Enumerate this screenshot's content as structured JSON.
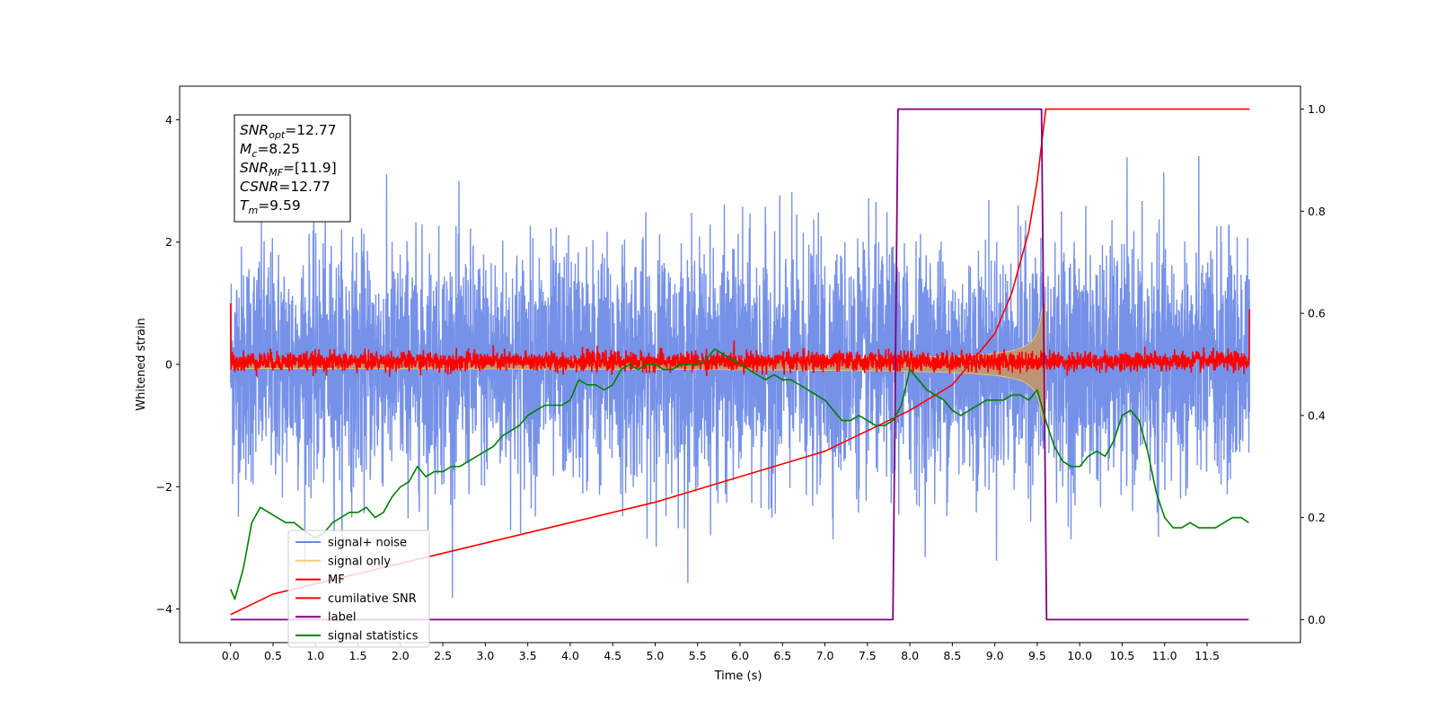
{
  "chart_data": {
    "type": "line",
    "xlabel": "Time (s)",
    "ylabel": "Whitened strain",
    "xlim": [
      -0.6,
      12.6
    ],
    "ylim": [
      -4.55,
      4.55
    ],
    "y2lim": [
      -0.045,
      1.045
    ],
    "grid": false,
    "legend_position": "lower-left",
    "x_ticks": [
      "0.0",
      "0.5",
      "1.0",
      "1.5",
      "2.0",
      "2.5",
      "3.0",
      "3.5",
      "4.0",
      "4.5",
      "5.0",
      "5.5",
      "6.0",
      "6.5",
      "7.0",
      "7.5",
      "8.0",
      "8.5",
      "9.0",
      "9.5",
      "10.0",
      "10.5",
      "11.0",
      "11.5"
    ],
    "y_ticks": [
      "4",
      "2",
      "0",
      "−2",
      "−4"
    ],
    "y2_ticks": [
      "1.0",
      "0.8",
      "0.6",
      "0.4",
      "0.2",
      "0.0"
    ],
    "annotation": {
      "lines": [
        {
          "main": "SNR",
          "sub": "opt",
          "rest": "=12.77"
        },
        {
          "main": "M",
          "sub": "c",
          "rest": "=8.25"
        },
        {
          "main": "SNR",
          "sub": "MF",
          "rest": "=[11.9]"
        },
        {
          "main": "CSNR",
          "sub": "",
          "rest": "=12.77"
        },
        {
          "main": "T",
          "sub": "m",
          "rest": "=9.59"
        }
      ]
    },
    "series": [
      {
        "name": "signal+ noise",
        "color": "#6a88e6",
        "axis": "left",
        "kind": "noise",
        "x_range": [
          0,
          12
        ],
        "sigma": 1.0,
        "peak": 3.9
      },
      {
        "name": "signal only",
        "color": "#f5cf78",
        "axis": "left",
        "kind": "chirp",
        "x_range": [
          0,
          9.6
        ],
        "amplitude_end": 1.0,
        "amplitude_start": 0.05
      },
      {
        "name": "MF",
        "color": "#ff0000",
        "axis": "left",
        "kind": "noise",
        "x_range": [
          0,
          12
        ],
        "center": 0.05,
        "sigma": 0.08,
        "edge_values": [
          1.0,
          0.9
        ]
      },
      {
        "name": "cumilative SNR",
        "color": "#ff0000",
        "axis": "right",
        "x": [
          0,
          0.5,
          1,
          2,
          3,
          4,
          5,
          6,
          7,
          7.5,
          8,
          8.5,
          9,
          9.2,
          9.4,
          9.5,
          9.55,
          9.6,
          12
        ],
        "y": [
          0.01,
          0.05,
          0.07,
          0.11,
          0.15,
          0.19,
          0.23,
          0.28,
          0.33,
          0.37,
          0.41,
          0.46,
          0.56,
          0.64,
          0.76,
          0.86,
          0.93,
          1.0,
          1.0
        ]
      },
      {
        "name": "label",
        "color": "#800080",
        "axis": "right",
        "x": [
          0,
          7.8,
          7.86,
          9.55,
          9.61,
          11.99
        ],
        "y": [
          0,
          0,
          1,
          1,
          0,
          0
        ]
      },
      {
        "name": "signal statistics",
        "color": "#008000",
        "axis": "right",
        "x": [
          0.0,
          0.05,
          0.15,
          0.25,
          0.35,
          0.45,
          0.55,
          0.65,
          0.75,
          0.9,
          1.0,
          1.1,
          1.2,
          1.3,
          1.4,
          1.5,
          1.6,
          1.7,
          1.8,
          1.9,
          2.0,
          2.1,
          2.2,
          2.3,
          2.4,
          2.5,
          2.6,
          2.7,
          2.8,
          2.9,
          3.0,
          3.1,
          3.2,
          3.3,
          3.4,
          3.5,
          3.6,
          3.7,
          3.8,
          3.9,
          4.0,
          4.1,
          4.2,
          4.3,
          4.4,
          4.5,
          4.6,
          4.7,
          4.8,
          4.9,
          5.0,
          5.1,
          5.2,
          5.3,
          5.4,
          5.5,
          5.6,
          5.7,
          5.8,
          5.9,
          6.0,
          6.1,
          6.2,
          6.3,
          6.4,
          6.5,
          6.6,
          6.7,
          6.8,
          6.9,
          7.0,
          7.1,
          7.2,
          7.3,
          7.4,
          7.5,
          7.6,
          7.7,
          7.8,
          7.9,
          8.0,
          8.1,
          8.2,
          8.3,
          8.4,
          8.5,
          8.6,
          8.7,
          8.8,
          8.9,
          9.0,
          9.1,
          9.2,
          9.3,
          9.4,
          9.5,
          9.6,
          9.7,
          9.8,
          9.9,
          10.0,
          10.1,
          10.2,
          10.3,
          10.4,
          10.5,
          10.6,
          10.7,
          10.8,
          10.9,
          11.0,
          11.1,
          11.2,
          11.3,
          11.4,
          11.5,
          11.6,
          11.7,
          11.8,
          11.9,
          11.99
        ],
        "y": [
          0.06,
          0.04,
          0.1,
          0.19,
          0.22,
          0.21,
          0.2,
          0.19,
          0.19,
          0.17,
          0.16,
          0.17,
          0.19,
          0.2,
          0.21,
          0.21,
          0.22,
          0.2,
          0.21,
          0.24,
          0.26,
          0.27,
          0.3,
          0.28,
          0.29,
          0.29,
          0.3,
          0.3,
          0.31,
          0.32,
          0.33,
          0.34,
          0.36,
          0.37,
          0.38,
          0.4,
          0.41,
          0.42,
          0.42,
          0.42,
          0.43,
          0.47,
          0.46,
          0.46,
          0.45,
          0.46,
          0.49,
          0.5,
          0.49,
          0.5,
          0.5,
          0.49,
          0.49,
          0.5,
          0.5,
          0.5,
          0.51,
          0.53,
          0.52,
          0.51,
          0.5,
          0.49,
          0.48,
          0.47,
          0.48,
          0.47,
          0.47,
          0.46,
          0.45,
          0.44,
          0.43,
          0.41,
          0.39,
          0.39,
          0.4,
          0.39,
          0.38,
          0.38,
          0.39,
          0.42,
          0.49,
          0.47,
          0.45,
          0.44,
          0.43,
          0.41,
          0.4,
          0.41,
          0.42,
          0.43,
          0.43,
          0.43,
          0.44,
          0.44,
          0.43,
          0.45,
          0.39,
          0.34,
          0.31,
          0.3,
          0.3,
          0.32,
          0.33,
          0.32,
          0.35,
          0.4,
          0.41,
          0.39,
          0.33,
          0.25,
          0.2,
          0.18,
          0.18,
          0.19,
          0.18,
          0.18,
          0.18,
          0.19,
          0.2,
          0.2,
          0.19
        ]
      }
    ]
  }
}
